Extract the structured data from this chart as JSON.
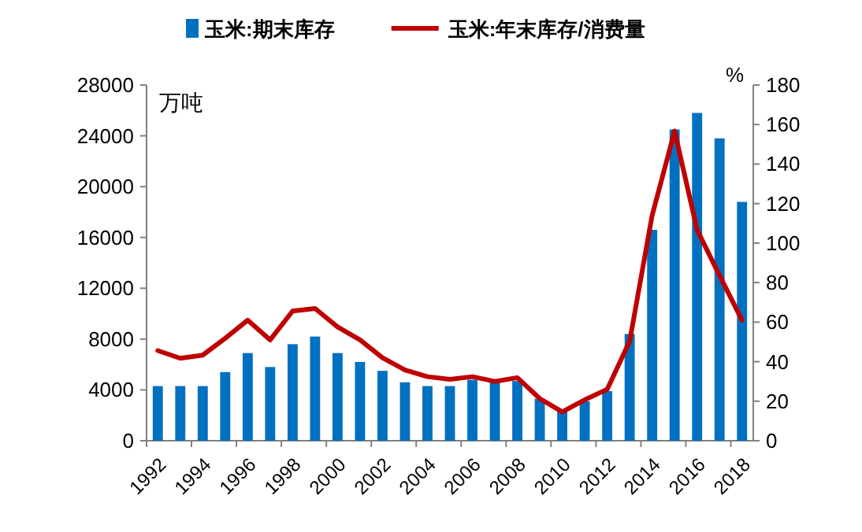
{
  "chart_data": {
    "type": "bar",
    "categories": [
      "1992",
      null,
      "1994",
      null,
      "1996",
      null,
      "1998",
      null,
      "2000",
      null,
      "2002",
      null,
      "2004",
      null,
      "2006",
      null,
      "2008",
      null,
      "2010",
      null,
      "2012",
      null,
      "2014",
      null,
      "2016",
      null,
      "2018"
    ],
    "series": [
      {
        "name": "玉米:期末库存",
        "color": "#0070c0",
        "values": [
          4300,
          4300,
          4300,
          5400,
          6900,
          5800,
          7600,
          8200,
          6900,
          6200,
          5500,
          4600,
          4300,
          4300,
          4800,
          4700,
          4700,
          3300,
          2300,
          3100,
          3900,
          8400,
          16600,
          24500,
          25800,
          23800,
          18800
        ]
      },
      {
        "name": "玉米:年末库存/消费量",
        "type": "line",
        "axis": "y2",
        "color": "#c00000",
        "values": [
          45.6,
          41.7,
          43.3,
          51.8,
          61,
          51,
          65.6,
          66.9,
          57.6,
          51,
          42,
          35.8,
          32.4,
          31.1,
          32.4,
          30,
          31.9,
          21.3,
          14.6,
          20.7,
          26,
          50.4,
          114,
          156.7,
          106.7,
          83.6,
          61
        ]
      }
    ],
    "ylabel": "万吨",
    "y2label": "%",
    "ylim": [
      0,
      28000
    ],
    "yticks": [
      0,
      4000,
      8000,
      12000,
      16000,
      20000,
      24000,
      28000
    ],
    "y2lim": [
      0,
      180
    ],
    "y2ticks": [
      0,
      20,
      40,
      60,
      80,
      100,
      120,
      140,
      160,
      180
    ],
    "legend": "top",
    "grid": false
  }
}
